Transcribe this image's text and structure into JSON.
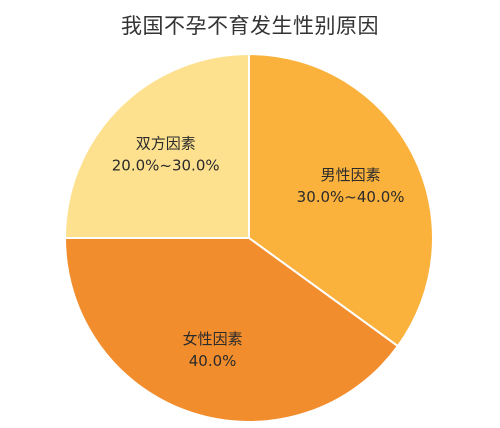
{
  "chart_data": {
    "type": "pie",
    "title": "我国不孕不育发生性别原因",
    "slices": [
      {
        "label": "男性因素",
        "range_text": "30.0%~40.0%",
        "value": 35,
        "color": "#fbb23c"
      },
      {
        "label": "女性因素",
        "range_text": "40.0%",
        "value": 40,
        "color": "#f28d2d"
      },
      {
        "label": "双方因素",
        "range_text": "20.0%~30.0%",
        "value": 25,
        "color": "#fde18f"
      }
    ],
    "legend": "none",
    "grid": false
  }
}
